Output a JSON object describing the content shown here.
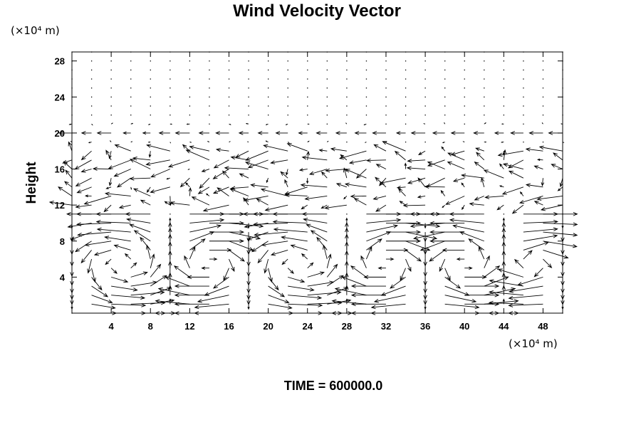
{
  "chart_data": {
    "type": "vector-field",
    "title": "Wind Velocity Vector",
    "ylabel": "Height",
    "xlabel": "",
    "x_unit": "(×10⁴ m)",
    "y_unit": "(×10⁴ m)",
    "xlim": [
      0,
      50
    ],
    "ylim": [
      0,
      29
    ],
    "x_ticks": [
      4,
      8,
      12,
      16,
      20,
      24,
      28,
      32,
      36,
      40,
      44,
      48
    ],
    "y_ticks": [
      4,
      8,
      12,
      16,
      20,
      24,
      28
    ],
    "grid": false,
    "x_grid": [
      0,
      2,
      4,
      6,
      8,
      10,
      12,
      14,
      16,
      18,
      20,
      22,
      24,
      26,
      28,
      30,
      32,
      34,
      36,
      38,
      40,
      42,
      44,
      46,
      48,
      50
    ],
    "y_grid": [
      0,
      1,
      2,
      3,
      4,
      5,
      6,
      7,
      8,
      9,
      10,
      11,
      12,
      13,
      14,
      15,
      16,
      17,
      18,
      19,
      20,
      21,
      22,
      23,
      24,
      25,
      26,
      27,
      28,
      29
    ],
    "cells": [
      {
        "x_range": [
          0,
          10
        ],
        "y_range": [
          0,
          11
        ],
        "sense": 1
      },
      {
        "x_range": [
          10,
          18
        ],
        "y_range": [
          0,
          11
        ],
        "sense": -1
      },
      {
        "x_range": [
          18,
          28
        ],
        "y_range": [
          0,
          11
        ],
        "sense": 1
      },
      {
        "x_range": [
          28,
          36
        ],
        "y_range": [
          0,
          11
        ],
        "sense": -1
      },
      {
        "x_range": [
          36,
          44
        ],
        "y_range": [
          0,
          11
        ],
        "sense": 1
      },
      {
        "x_range": [
          44,
          50
        ],
        "y_range": [
          0,
          11
        ],
        "sense": -1
      }
    ],
    "upper_layer": {
      "y_range": [
        12,
        18
      ],
      "mean_u": -1.6,
      "turbulence": 1.3
    },
    "jet_level": {
      "y": 20,
      "u": -1.5
    },
    "calm_above": 21
  },
  "footer": {
    "time_label": "TIME = 600000.0"
  }
}
